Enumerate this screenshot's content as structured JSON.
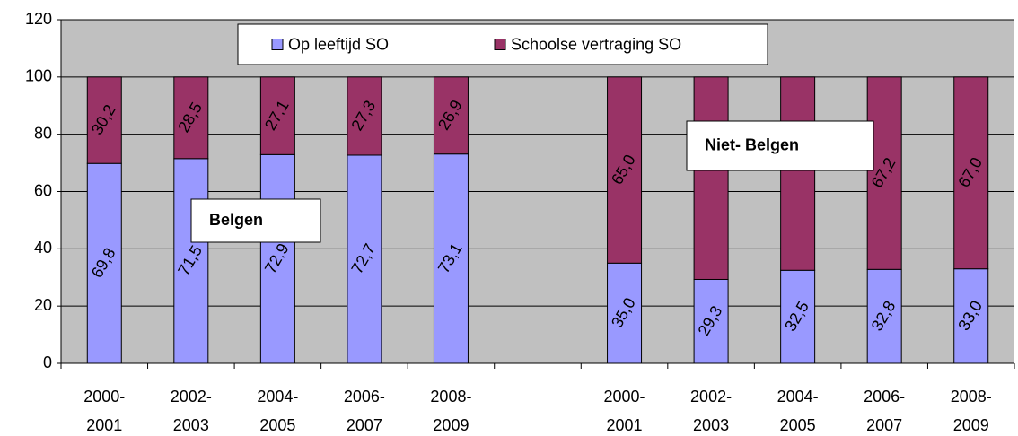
{
  "chart_data": {
    "type": "stacked-bar",
    "categories": [
      "2000-\n2001",
      "2002-\n2003",
      "2004-\n2005",
      "2006-\n2007",
      "2008-\n2009",
      null,
      "2000-\n2001",
      "2002-\n2003",
      "2004-\n2005",
      "2006-\n2007",
      "2008-\n2009"
    ],
    "series": [
      {
        "name": "Op leeftijd SO",
        "color": "#9999ff",
        "values": [
          69.8,
          71.5,
          72.9,
          72.7,
          73.1,
          null,
          35.0,
          29.3,
          32.5,
          32.8,
          33.0
        ],
        "value_labels": [
          "69,8",
          "71,5",
          "72,9",
          "72,7",
          "73,1",
          null,
          "35,0",
          "29,3",
          "32,5",
          "32,8",
          "33,0"
        ]
      },
      {
        "name": "Schoolse vertraging SO",
        "color": "#993366",
        "values": [
          30.2,
          28.5,
          27.1,
          27.3,
          26.9,
          null,
          65.0,
          70.7,
          67.5,
          67.2,
          67.0
        ],
        "value_labels": [
          "30,2",
          "28,5",
          "27,1",
          "27,3",
          "26,9",
          null,
          "65,0",
          null,
          null,
          "67,2",
          "67,0"
        ]
      }
    ],
    "annotations": [
      "Belgen",
      "Niet- Belgen"
    ],
    "ylim": [
      0,
      120
    ],
    "yticks": [
      0,
      20,
      40,
      60,
      80,
      100,
      120
    ],
    "grid": true,
    "background": "#c0c0c0",
    "legend": "top"
  }
}
